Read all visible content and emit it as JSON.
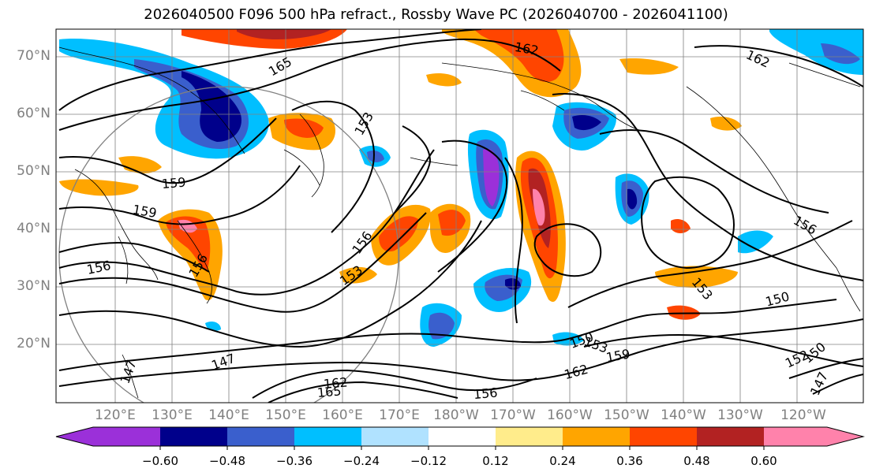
{
  "title": "2026040500 F096 500 hPa refract., Rossby Wave PC (2026040700 - 2026041100)",
  "lat_labels": [
    "70°N",
    "60°N",
    "50°N",
    "40°N",
    "30°N",
    "20°N"
  ],
  "lon_labels": [
    "120°E",
    "130°E",
    "140°E",
    "150°E",
    "160°E",
    "170°E",
    "180°W",
    "170°W",
    "160°W",
    "150°W",
    "140°W",
    "130°W",
    "120°W"
  ],
  "contour_labels": [
    "165",
    "162",
    "162",
    "153",
    "159",
    "159",
    "156",
    "156",
    "153",
    "156",
    "153",
    "150",
    "150",
    "159",
    "162",
    "156",
    "147",
    "147",
    "162",
    "165",
    "152",
    "150",
    "147",
    "156",
    "153"
  ],
  "colorbar": {
    "tick_labels": [
      "−0.60",
      "−0.48",
      "−0.36",
      "−0.24",
      "−0.12",
      "0.12",
      "0.24",
      "0.36",
      "0.48",
      "0.60"
    ],
    "colors": [
      "#9b30d9",
      "#00008b",
      "#3a5fcd",
      "#00bfff",
      "#b0e2ff",
      "#ffffff",
      "#ffec8b",
      "#ffa500",
      "#ff4500",
      "#b22222",
      "#ff82ab"
    ]
  }
}
